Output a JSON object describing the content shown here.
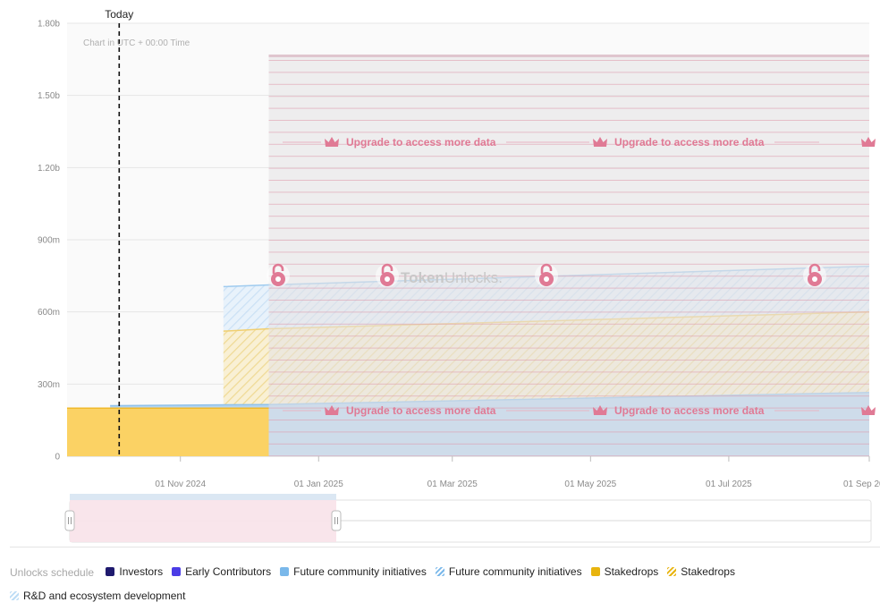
{
  "chart_data": {
    "type": "area",
    "today_label": "Today",
    "timezone_note": "Chart in UTC + 00:00 Time",
    "y_ticks": [
      "0",
      "300m",
      "600m",
      "900m",
      "1.20b",
      "1.50b",
      "1.80b"
    ],
    "y_tick_values": [
      0,
      300000000,
      600000000,
      900000000,
      1200000000,
      1500000000,
      1800000000
    ],
    "ylim": [
      0,
      1800000000
    ],
    "x_ticks": [
      "01 Nov 2024",
      "01 Jan 2025",
      "01 Mar 2025",
      "01 May 2025",
      "01 Jul 2025",
      "01 Sep 20"
    ],
    "x_tick_dates": [
      "2024-11-01",
      "2025-01-01",
      "2025-03-01",
      "2025-05-01",
      "2025-07-01",
      "2025-09-01"
    ],
    "xlim": [
      "2024-09-12",
      "2025-09-01"
    ],
    "today_date": "2024-10-05",
    "locked_from_date": "2024-12-10",
    "locked_top_value": 1670000000,
    "series": [
      {
        "name": "Stakedrops",
        "style": "solid",
        "color": "#f5c242",
        "x": [
          "2024-09-12",
          "2024-12-10"
        ],
        "values": [
          200000000,
          200000000
        ]
      },
      {
        "name": "Future community initiatives",
        "style": "solid",
        "color": "#7ab8ea",
        "x": [
          "2024-10-01",
          "2024-12-10",
          "2025-09-01"
        ],
        "values": [
          210000000,
          215000000,
          265000000
        ]
      },
      {
        "name": "Stakedrops",
        "style": "hatched",
        "color": "#f5c242",
        "x": [
          "2024-11-20",
          "2024-12-10",
          "2025-09-01"
        ],
        "values": [
          520000000,
          530000000,
          600000000
        ]
      },
      {
        "name": "R&D and ecosystem development",
        "style": "hatched",
        "color": "#bcdcf5",
        "x": [
          "2024-11-20",
          "2024-12-10",
          "2025-09-01"
        ],
        "values": [
          705000000,
          712000000,
          790000000
        ]
      }
    ],
    "upgrade_text": "Upgrade to access more data",
    "watermark": {
      "bold": "Token",
      "light": "Unlocks."
    },
    "legend_title": "Unlocks schedule",
    "legend": [
      {
        "label": "Investors",
        "color": "#1f1a6e",
        "style": "solid"
      },
      {
        "label": "Early Contributors",
        "color": "#4b3ce6",
        "style": "solid"
      },
      {
        "label": "Future community initiatives",
        "color": "#7ab8ea",
        "style": "solid"
      },
      {
        "label": "Future community initiatives",
        "color": "#7ab8ea",
        "style": "hatched"
      },
      {
        "label": "Stakedrops",
        "color": "#e8b40e",
        "style": "solid"
      },
      {
        "label": "Stakedrops",
        "color": "#e8b40e",
        "style": "hatched"
      },
      {
        "label": "R&D and ecosystem development",
        "color": "#bcdcf5",
        "style": "hatched"
      }
    ]
  }
}
